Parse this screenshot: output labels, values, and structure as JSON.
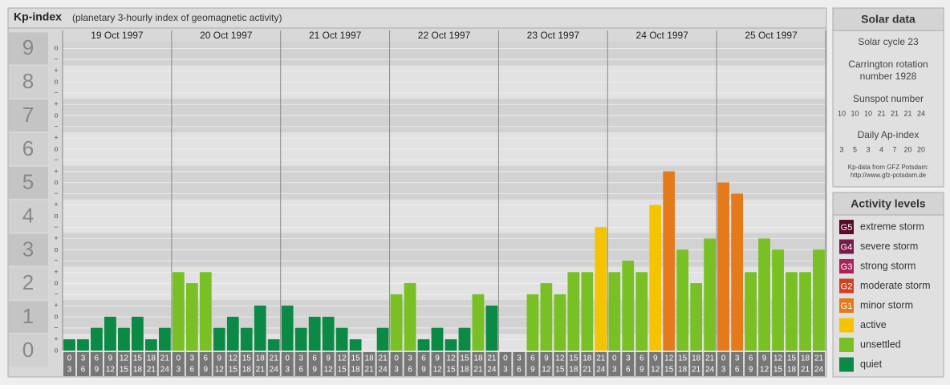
{
  "chart_data": {
    "type": "bar",
    "title": "Kp-index",
    "subtitle": "(planetary 3-hourly index of geomagnetic activity)",
    "days": [
      "19 Oct 1997",
      "20 Oct 1997",
      "21 Oct 1997",
      "22 Oct 1997",
      "23 Oct 1997",
      "24 Oct 1997",
      "25 Oct 1997"
    ],
    "hour_start": [
      0,
      3,
      6,
      9,
      12,
      15,
      18,
      21
    ],
    "hour_end": [
      3,
      6,
      9,
      12,
      15,
      18,
      21,
      24
    ],
    "values": [
      0.33,
      0.33,
      0.67,
      1,
      0.67,
      1,
      0.33,
      0.67,
      2.33,
      2,
      2.33,
      0.67,
      1,
      0.67,
      1.33,
      0.33,
      1.33,
      0.67,
      1,
      1,
      0.67,
      0.33,
      0,
      0.67,
      1.67,
      2,
      0.33,
      0.67,
      0.33,
      0.67,
      1.67,
      1.33,
      0,
      0,
      1.67,
      2,
      1.67,
      2.33,
      2.33,
      3.67,
      2.33,
      2.67,
      2.33,
      4.33,
      5.33,
      3,
      2,
      3.33,
      5,
      4.67,
      2.33,
      3.33,
      3,
      2.33,
      2.33,
      3
    ],
    "bar_colors": [
      "#0b8a45",
      "#0b8a45",
      "#0b8a45",
      "#0b8a45",
      "#0b8a45",
      "#0b8a45",
      "#0b8a45",
      "#0b8a45",
      "#79c025",
      "#79c025",
      "#79c025",
      "#0b8a45",
      "#0b8a45",
      "#0b8a45",
      "#0b8a45",
      "#0b8a45",
      "#0b8a45",
      "#0b8a45",
      "#0b8a45",
      "#0b8a45",
      "#0b8a45",
      "#0b8a45",
      "#0b8a45",
      "#0b8a45",
      "#79c025",
      "#79c025",
      "#0b8a45",
      "#0b8a45",
      "#0b8a45",
      "#0b8a45",
      "#79c025",
      "#0b8a45",
      "#0b8a45",
      "#0b8a45",
      "#79c025",
      "#79c025",
      "#79c025",
      "#79c025",
      "#79c025",
      "#f5c400",
      "#79c025",
      "#79c025",
      "#79c025",
      "#f5c400",
      "#e57a1a",
      "#79c025",
      "#79c025",
      "#79c025",
      "#e57a1a",
      "#e57a1a",
      "#79c025",
      "#79c025",
      "#79c025",
      "#79c025",
      "#79c025",
      "#79c025"
    ],
    "ylim": [
      0,
      9.2
    ],
    "yticks": [
      0,
      1,
      2,
      3,
      4,
      5,
      6,
      7,
      8,
      9
    ],
    "minor_yticks": [
      {
        "value": 0,
        "label": "o"
      },
      {
        "value": 0.33,
        "label": "+"
      },
      {
        "value": 0.67,
        "label": "−"
      },
      {
        "value": 1,
        "label": "o"
      },
      {
        "value": 1.33,
        "label": "+"
      },
      {
        "value": 1.67,
        "label": "−"
      },
      {
        "value": 2,
        "label": "o"
      },
      {
        "value": 2.33,
        "label": "+"
      },
      {
        "value": 2.67,
        "label": "−"
      },
      {
        "value": 3,
        "label": "o"
      },
      {
        "value": 3.33,
        "label": "+"
      },
      {
        "value": 3.67,
        "label": "−"
      },
      {
        "value": 4,
        "label": "o"
      },
      {
        "value": 4.33,
        "label": "+"
      },
      {
        "value": 4.67,
        "label": "−"
      },
      {
        "value": 5,
        "label": "o"
      },
      {
        "value": 5.33,
        "label": "+"
      },
      {
        "value": 5.67,
        "label": "−"
      },
      {
        "value": 6,
        "label": "o"
      },
      {
        "value": 6.33,
        "label": "+"
      },
      {
        "value": 6.67,
        "label": "−"
      },
      {
        "value": 7,
        "label": "o"
      },
      {
        "value": 7.33,
        "label": "+"
      },
      {
        "value": 7.67,
        "label": "−"
      },
      {
        "value": 8,
        "label": "o"
      },
      {
        "value": 8.33,
        "label": "+"
      },
      {
        "value": 8.67,
        "label": "−"
      },
      {
        "value": 9,
        "label": "o"
      }
    ],
    "grid": true
  },
  "solar_data": {
    "title": "Solar data",
    "cycle": "Solar cycle 23",
    "carrington": [
      "Carrington rotation",
      "number 1928"
    ],
    "sunspot_title": "Sunspot number",
    "sunspot": [
      10,
      10,
      10,
      21,
      21,
      21,
      24
    ],
    "ap_title": "Daily Ap-index",
    "ap": [
      3,
      5,
      3,
      4,
      7,
      20,
      20
    ],
    "credit": [
      "Kp-data from GFZ Potsdam:",
      "http://www.gfz-potsdam.de"
    ]
  },
  "activity_levels": {
    "title": "Activity levels",
    "items": [
      {
        "badge": "G5",
        "label": "extreme storm",
        "color": "#5a0a2a"
      },
      {
        "badge": "G4",
        "label": "severe storm",
        "color": "#7a1a4a"
      },
      {
        "badge": "G3",
        "label": "strong storm",
        "color": "#b0205a"
      },
      {
        "badge": "G2",
        "label": "moderate storm",
        "color": "#d04020"
      },
      {
        "badge": "G1",
        "label": "minor storm",
        "color": "#e57a1a"
      },
      {
        "label": "active",
        "color": "#f5c400"
      },
      {
        "label": "unsettled",
        "color": "#79c025"
      },
      {
        "label": "quiet",
        "color": "#0b8a45"
      }
    ]
  }
}
